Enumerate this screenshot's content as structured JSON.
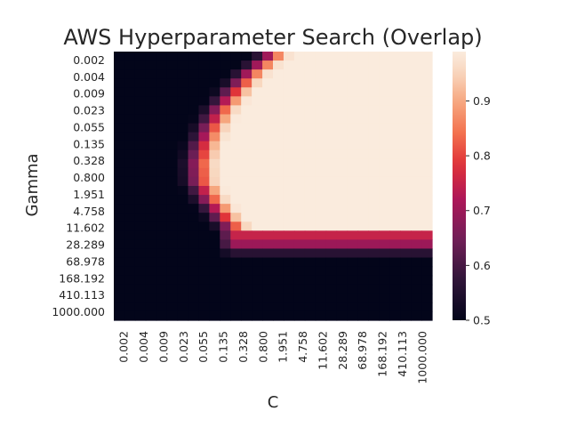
{
  "chart_data": {
    "type": "heatmap",
    "title": "AWS Hyperparameter Search (Overlap)",
    "xlabel": "C",
    "ylabel": "Gamma",
    "x_tick_labels": [
      "0.002",
      "0.004",
      "0.009",
      "0.023",
      "0.055",
      "0.135",
      "0.328",
      "0.800",
      "1.951",
      "4.758",
      "11.602",
      "28.289",
      "68.978",
      "168.192",
      "410.113",
      "1000.000"
    ],
    "y_tick_labels": [
      "0.002",
      "0.004",
      "0.009",
      "0.023",
      "0.055",
      "0.135",
      "0.328",
      "0.800",
      "1.951",
      "4.758",
      "11.602",
      "28.289",
      "68.978",
      "168.192",
      "410.113",
      "1000.000"
    ],
    "grid_size": [
      30,
      30
    ],
    "colorbar": {
      "range": [
        0.5,
        0.99
      ],
      "ticks": [
        0.5,
        0.6,
        0.7,
        0.8,
        0.9
      ]
    },
    "model": {
      "floor": 0.5,
      "max": 0.99,
      "boundary_rows": [
        0,
        2,
        4,
        6,
        8,
        10,
        12,
        14,
        16,
        18,
        20
      ],
      "boundary_cols": [
        12,
        10,
        8.5,
        7.2,
        6.3,
        5.6,
        5.2,
        5.3,
        6.2,
        7.5,
        9.0
      ],
      "bright_cutoff_row": 19.5,
      "band_rows": [
        {
          "row": 17,
          "value": 0.97
        },
        {
          "row": 18,
          "value": 0.9
        },
        {
          "row": 19,
          "value": 0.82
        },
        {
          "row": 20,
          "value": 0.75
        },
        {
          "row": 21,
          "value": 0.7
        },
        {
          "row": 22,
          "value": 0.56
        }
      ],
      "band_start_col": 14,
      "rise_width": 4.5
    }
  }
}
